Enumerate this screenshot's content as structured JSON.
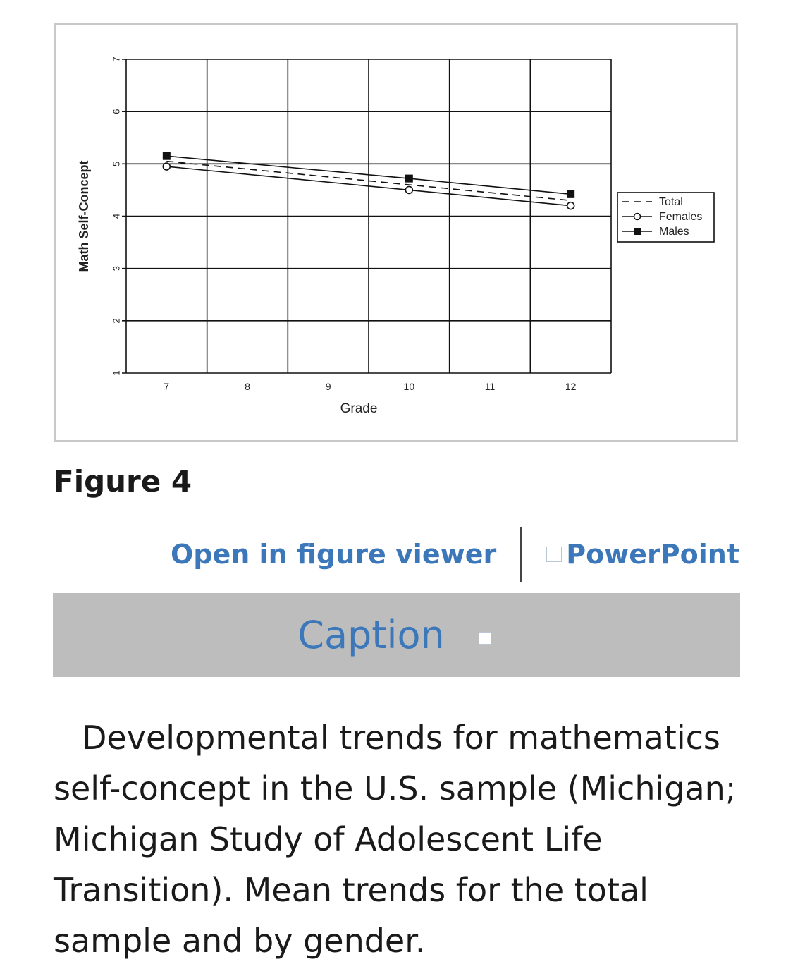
{
  "figure": {
    "title": "Figure 4",
    "open_viewer_label": "Open in figure viewer",
    "powerpoint_label": "PowerPoint",
    "caption_toggle_label": "Caption",
    "caption_text": "Developmental trends for mathematics self-concept in the U.S. sample (Michigan; Michigan Study of Adolescent Life Transition). Mean trends for the total sample and by gender."
  },
  "chart_data": {
    "type": "line",
    "xlabel": "Grade",
    "ylabel": "Math Self-Concept",
    "x_ticks": [
      7,
      8,
      9,
      10,
      11,
      12
    ],
    "y_ticks": [
      1,
      2,
      3,
      4,
      5,
      6,
      7
    ],
    "xlim": [
      7,
      12
    ],
    "ylim": [
      1,
      7
    ],
    "grid": true,
    "legend_position": "right",
    "series": [
      {
        "name": "Total",
        "style": "dashed",
        "marker": "none",
        "x": [
          7,
          10,
          12
        ],
        "y": [
          5.05,
          4.6,
          4.3
        ]
      },
      {
        "name": "Females",
        "style": "solid",
        "marker": "open-circle",
        "x": [
          7,
          10,
          12
        ],
        "y": [
          4.95,
          4.5,
          4.2
        ]
      },
      {
        "name": "Males",
        "style": "solid",
        "marker": "filled-square",
        "x": [
          7,
          10,
          12
        ],
        "y": [
          5.15,
          4.72,
          4.42
        ]
      }
    ]
  }
}
